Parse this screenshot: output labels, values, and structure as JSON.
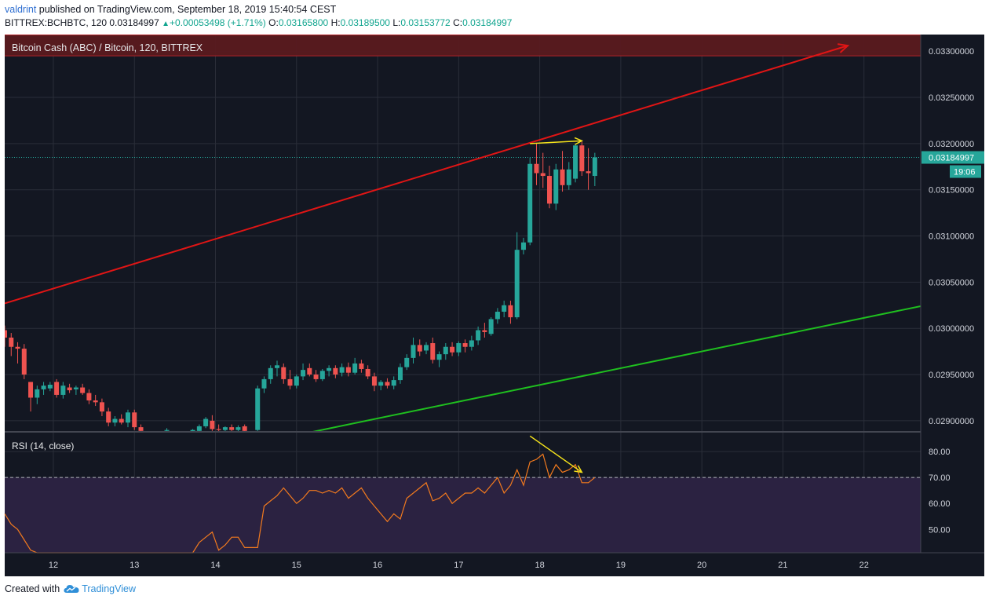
{
  "header": {
    "author": "valdrint",
    "published_text": "published on TradingView.com, September 18, 2019 15:40:54 CEST",
    "symbol": "BITTREX:BCHBTC, 120",
    "last": "0.03184997",
    "change": "+0.00053498 (+1.71%)",
    "o_label": "O:",
    "o": "0.03165800",
    "h_label": "H:",
    "h": "0.03189500",
    "l_label": "L:",
    "l": "0.03153772",
    "c_label": "C:",
    "c": "0.03184997"
  },
  "footer": {
    "created_with": "Created with",
    "brand": "TradingView"
  },
  "colors": {
    "background": "#131722",
    "grid": "#2a2e39",
    "up": "#26a69a",
    "down": "#ef5350",
    "red_line": "#e01515",
    "green_line": "#1fbf1f",
    "yellow": "#f5e31b",
    "rsi_line": "#f27a1e",
    "rsi_band": "#2b2241",
    "resistance_zone": "#5a1a1f"
  },
  "chart_data": {
    "type": "candlestick",
    "title": "Bitcoin Cash (ABC) / Bitcoin, 120, BITTREX",
    "x_ticks": [
      "12",
      "13",
      "14",
      "15",
      "16",
      "17",
      "18",
      "19",
      "20",
      "21",
      "22"
    ],
    "x_range_days": [
      11.4,
      22.7
    ],
    "y_ticks": [
      "0.03300000",
      "0.03250000",
      "0.03200000",
      "0.03150000",
      "0.03100000",
      "0.03050000",
      "0.03000000",
      "0.02950000",
      "0.02900000"
    ],
    "y_range": [
      0.02888,
      0.03318
    ],
    "last_price_label": "0.03184997",
    "countdown_label": "19:06",
    "resistance_zone": [
      0.03295,
      0.03318
    ],
    "candles": [
      {
        "d": 11.4,
        "o": 0.02998,
        "h": 0.03003,
        "l": 0.0298,
        "c": 0.0299
      },
      {
        "d": 11.48,
        "o": 0.0299,
        "h": 0.02995,
        "l": 0.0297,
        "c": 0.0298
      },
      {
        "d": 11.56,
        "o": 0.0298,
        "h": 0.02985,
        "l": 0.02962,
        "c": 0.02978
      },
      {
        "d": 11.64,
        "o": 0.02978,
        "h": 0.02983,
        "l": 0.02945,
        "c": 0.0295
      },
      {
        "d": 11.72,
        "o": 0.02942,
        "h": 0.02942,
        "l": 0.0291,
        "c": 0.02925
      },
      {
        "d": 11.8,
        "o": 0.02925,
        "h": 0.02938,
        "l": 0.02918,
        "c": 0.02934
      },
      {
        "d": 11.88,
        "o": 0.02934,
        "h": 0.02942,
        "l": 0.02928,
        "c": 0.02938
      },
      {
        "d": 11.96,
        "o": 0.02935,
        "h": 0.02942,
        "l": 0.02932,
        "c": 0.02939
      },
      {
        "d": 12.04,
        "o": 0.02942,
        "h": 0.02945,
        "l": 0.02925,
        "c": 0.02928
      },
      {
        "d": 12.12,
        "o": 0.02928,
        "h": 0.02942,
        "l": 0.02924,
        "c": 0.02938
      },
      {
        "d": 12.2,
        "o": 0.02936,
        "h": 0.0294,
        "l": 0.0293,
        "c": 0.02933
      },
      {
        "d": 12.28,
        "o": 0.02934,
        "h": 0.02938,
        "l": 0.02928,
        "c": 0.02936
      },
      {
        "d": 12.36,
        "o": 0.02936,
        "h": 0.0294,
        "l": 0.02928,
        "c": 0.0293
      },
      {
        "d": 12.44,
        "o": 0.0293,
        "h": 0.02934,
        "l": 0.02918,
        "c": 0.02922
      },
      {
        "d": 12.52,
        "o": 0.02922,
        "h": 0.02928,
        "l": 0.02916,
        "c": 0.0292
      },
      {
        "d": 12.6,
        "o": 0.0292,
        "h": 0.02924,
        "l": 0.02905,
        "c": 0.0291
      },
      {
        "d": 12.68,
        "o": 0.0291,
        "h": 0.02914,
        "l": 0.02894,
        "c": 0.02898
      },
      {
        "d": 12.76,
        "o": 0.02898,
        "h": 0.02905,
        "l": 0.02894,
        "c": 0.02902
      },
      {
        "d": 12.84,
        "o": 0.02902,
        "h": 0.02907,
        "l": 0.02896,
        "c": 0.02898
      },
      {
        "d": 12.92,
        "o": 0.02898,
        "h": 0.02912,
        "l": 0.02893,
        "c": 0.02909
      },
      {
        "d": 13.0,
        "o": 0.02909,
        "h": 0.02912,
        "l": 0.0289,
        "c": 0.02893
      },
      {
        "d": 13.08,
        "o": 0.02893,
        "h": 0.02896,
        "l": 0.02886,
        "c": 0.02889
      },
      {
        "d": 13.4,
        "o": 0.02889,
        "h": 0.02892,
        "l": 0.02886,
        "c": 0.0289
      },
      {
        "d": 13.72,
        "o": 0.02888,
        "h": 0.02891,
        "l": 0.02886,
        "c": 0.0289
      },
      {
        "d": 13.8,
        "o": 0.02889,
        "h": 0.02896,
        "l": 0.02887,
        "c": 0.02894
      },
      {
        "d": 13.88,
        "o": 0.02894,
        "h": 0.02904,
        "l": 0.02892,
        "c": 0.02902
      },
      {
        "d": 13.96,
        "o": 0.029,
        "h": 0.02906,
        "l": 0.02889,
        "c": 0.02891
      },
      {
        "d": 14.04,
        "o": 0.02891,
        "h": 0.02896,
        "l": 0.02886,
        "c": 0.0289
      },
      {
        "d": 14.12,
        "o": 0.0289,
        "h": 0.02894,
        "l": 0.02886,
        "c": 0.02893
      },
      {
        "d": 14.2,
        "o": 0.02893,
        "h": 0.02896,
        "l": 0.02888,
        "c": 0.0289
      },
      {
        "d": 14.28,
        "o": 0.0289,
        "h": 0.02895,
        "l": 0.02887,
        "c": 0.02893
      },
      {
        "d": 14.36,
        "o": 0.02894,
        "h": 0.02896,
        "l": 0.02886,
        "c": 0.02889
      },
      {
        "d": 14.52,
        "o": 0.0289,
        "h": 0.02938,
        "l": 0.02889,
        "c": 0.02935
      },
      {
        "d": 14.6,
        "o": 0.02935,
        "h": 0.02948,
        "l": 0.0293,
        "c": 0.02945
      },
      {
        "d": 14.68,
        "o": 0.02945,
        "h": 0.0296,
        "l": 0.0294,
        "c": 0.02957
      },
      {
        "d": 14.76,
        "o": 0.02957,
        "h": 0.02965,
        "l": 0.02948,
        "c": 0.0296
      },
      {
        "d": 14.84,
        "o": 0.02958,
        "h": 0.02962,
        "l": 0.0294,
        "c": 0.02945
      },
      {
        "d": 14.92,
        "o": 0.02945,
        "h": 0.02955,
        "l": 0.02934,
        "c": 0.02938
      },
      {
        "d": 15.0,
        "o": 0.02938,
        "h": 0.0295,
        "l": 0.02935,
        "c": 0.02948
      },
      {
        "d": 15.08,
        "o": 0.02948,
        "h": 0.02962,
        "l": 0.02944,
        "c": 0.02955
      },
      {
        "d": 15.16,
        "o": 0.02957,
        "h": 0.02962,
        "l": 0.02948,
        "c": 0.0295
      },
      {
        "d": 15.24,
        "o": 0.0295,
        "h": 0.02955,
        "l": 0.02942,
        "c": 0.02945
      },
      {
        "d": 15.32,
        "o": 0.02945,
        "h": 0.02956,
        "l": 0.02943,
        "c": 0.02954
      },
      {
        "d": 15.4,
        "o": 0.02954,
        "h": 0.0296,
        "l": 0.02948,
        "c": 0.02957
      },
      {
        "d": 15.48,
        "o": 0.02957,
        "h": 0.0296,
        "l": 0.02946,
        "c": 0.0295
      },
      {
        "d": 15.56,
        "o": 0.02952,
        "h": 0.02962,
        "l": 0.02948,
        "c": 0.02958
      },
      {
        "d": 15.64,
        "o": 0.02958,
        "h": 0.02963,
        "l": 0.02948,
        "c": 0.02952
      },
      {
        "d": 15.72,
        "o": 0.02952,
        "h": 0.02968,
        "l": 0.0295,
        "c": 0.02962
      },
      {
        "d": 15.8,
        "o": 0.02962,
        "h": 0.02966,
        "l": 0.02952,
        "c": 0.02956
      },
      {
        "d": 15.88,
        "o": 0.02956,
        "h": 0.0296,
        "l": 0.02945,
        "c": 0.02948
      },
      {
        "d": 15.96,
        "o": 0.02948,
        "h": 0.02952,
        "l": 0.02932,
        "c": 0.02938
      },
      {
        "d": 16.04,
        "o": 0.02938,
        "h": 0.02944,
        "l": 0.02933,
        "c": 0.02942
      },
      {
        "d": 16.12,
        "o": 0.02942,
        "h": 0.02946,
        "l": 0.02935,
        "c": 0.02938
      },
      {
        "d": 16.2,
        "o": 0.02938,
        "h": 0.02948,
        "l": 0.02934,
        "c": 0.02944
      },
      {
        "d": 16.28,
        "o": 0.02944,
        "h": 0.02962,
        "l": 0.0294,
        "c": 0.02958
      },
      {
        "d": 16.36,
        "o": 0.02958,
        "h": 0.02972,
        "l": 0.02955,
        "c": 0.02968
      },
      {
        "d": 16.44,
        "o": 0.02968,
        "h": 0.0299,
        "l": 0.02962,
        "c": 0.02982
      },
      {
        "d": 16.52,
        "o": 0.02982,
        "h": 0.02988,
        "l": 0.0297,
        "c": 0.02975
      },
      {
        "d": 16.6,
        "o": 0.02976,
        "h": 0.02985,
        "l": 0.02972,
        "c": 0.02982
      },
      {
        "d": 16.68,
        "o": 0.02984,
        "h": 0.0299,
        "l": 0.02962,
        "c": 0.02966
      },
      {
        "d": 16.76,
        "o": 0.02966,
        "h": 0.02975,
        "l": 0.02958,
        "c": 0.02972
      },
      {
        "d": 16.84,
        "o": 0.02972,
        "h": 0.02984,
        "l": 0.02966,
        "c": 0.0298
      },
      {
        "d": 16.92,
        "o": 0.0298,
        "h": 0.02985,
        "l": 0.0297,
        "c": 0.02974
      },
      {
        "d": 17.0,
        "o": 0.02974,
        "h": 0.02986,
        "l": 0.0297,
        "c": 0.02984
      },
      {
        "d": 17.08,
        "o": 0.02984,
        "h": 0.02988,
        "l": 0.02974,
        "c": 0.0298
      },
      {
        "d": 17.16,
        "o": 0.0298,
        "h": 0.02992,
        "l": 0.02976,
        "c": 0.02987
      },
      {
        "d": 17.24,
        "o": 0.02987,
        "h": 0.03002,
        "l": 0.02982,
        "c": 0.02998
      },
      {
        "d": 17.32,
        "o": 0.02998,
        "h": 0.03006,
        "l": 0.0299,
        "c": 0.02996
      },
      {
        "d": 17.4,
        "o": 0.02994,
        "h": 0.03012,
        "l": 0.02992,
        "c": 0.0301
      },
      {
        "d": 17.48,
        "o": 0.0301,
        "h": 0.03022,
        "l": 0.03005,
        "c": 0.03018
      },
      {
        "d": 17.56,
        "o": 0.03018,
        "h": 0.0303,
        "l": 0.03012,
        "c": 0.03025
      },
      {
        "d": 17.64,
        "o": 0.03025,
        "h": 0.0303,
        "l": 0.03005,
        "c": 0.03012
      },
      {
        "d": 17.72,
        "o": 0.03012,
        "h": 0.03104,
        "l": 0.0301,
        "c": 0.03085
      },
      {
        "d": 17.8,
        "o": 0.03085,
        "h": 0.03098,
        "l": 0.0308,
        "c": 0.03093
      },
      {
        "d": 17.88,
        "o": 0.03093,
        "h": 0.03185,
        "l": 0.0309,
        "c": 0.03178
      },
      {
        "d": 17.96,
        "o": 0.03178,
        "h": 0.032,
        "l": 0.03155,
        "c": 0.03168
      },
      {
        "d": 18.04,
        "o": 0.03168,
        "h": 0.0319,
        "l": 0.03152,
        "c": 0.03165
      },
      {
        "d": 18.12,
        "o": 0.03165,
        "h": 0.03176,
        "l": 0.0313,
        "c": 0.03135
      },
      {
        "d": 18.2,
        "o": 0.03135,
        "h": 0.03178,
        "l": 0.03128,
        "c": 0.03172
      },
      {
        "d": 18.28,
        "o": 0.03172,
        "h": 0.03192,
        "l": 0.03148,
        "c": 0.03155
      },
      {
        "d": 18.36,
        "o": 0.03155,
        "h": 0.0318,
        "l": 0.0315,
        "c": 0.03172
      },
      {
        "d": 18.44,
        "o": 0.03162,
        "h": 0.032,
        "l": 0.03158,
        "c": 0.03198
      },
      {
        "d": 18.52,
        "o": 0.03198,
        "h": 0.03202,
        "l": 0.03165,
        "c": 0.0317
      },
      {
        "d": 18.6,
        "o": 0.0317,
        "h": 0.03195,
        "l": 0.0315,
        "c": 0.03168
      },
      {
        "d": 18.68,
        "o": 0.03165,
        "h": 0.0319,
        "l": 0.03154,
        "c": 0.03185
      }
    ],
    "red_trendline": [
      {
        "d": 11.4,
        "y": 0.03027
      },
      {
        "d": 21.8,
        "y": 0.03306
      }
    ],
    "green_trendline": [
      {
        "d": 15.2,
        "y": 0.02888
      },
      {
        "d": 22.7,
        "y": 0.03024
      }
    ],
    "price_yellow_arrow": [
      {
        "d": 17.88,
        "y": 0.032
      },
      {
        "d": 18.52,
        "y": 0.03203
      }
    ],
    "rsi": {
      "title": "RSI (14, close)",
      "y_ticks": [
        "80.00",
        "70.00",
        "60.00",
        "50.00"
      ],
      "y_range": [
        41,
        87
      ],
      "band": [
        30,
        70
      ],
      "dashed_level": 70,
      "values": [
        [
          11.4,
          56
        ],
        [
          11.48,
          52
        ],
        [
          11.56,
          50
        ],
        [
          11.64,
          46
        ],
        [
          11.72,
          42
        ],
        [
          11.8,
          40
        ],
        [
          11.88,
          39
        ],
        [
          11.96,
          41
        ],
        [
          12.04,
          41
        ],
        [
          12.12,
          40
        ],
        [
          12.2,
          39
        ],
        [
          12.28,
          41
        ],
        [
          12.36,
          40
        ],
        [
          12.44,
          39
        ],
        [
          12.52,
          40
        ],
        [
          12.6,
          38
        ],
        [
          12.68,
          37
        ],
        [
          12.76,
          38
        ],
        [
          12.84,
          37
        ],
        [
          12.92,
          36
        ],
        [
          13.0,
          35
        ],
        [
          13.08,
          34
        ],
        [
          13.72,
          36
        ],
        [
          13.8,
          45
        ],
        [
          13.88,
          47
        ],
        [
          13.96,
          49
        ],
        [
          14.04,
          42
        ],
        [
          14.12,
          44
        ],
        [
          14.2,
          47
        ],
        [
          14.28,
          47
        ],
        [
          14.36,
          43
        ],
        [
          14.44,
          43
        ],
        [
          14.52,
          43
        ],
        [
          14.6,
          59
        ],
        [
          14.68,
          61
        ],
        [
          14.76,
          63
        ],
        [
          14.84,
          66
        ],
        [
          14.92,
          63
        ],
        [
          15.0,
          60
        ],
        [
          15.08,
          62
        ],
        [
          15.16,
          65
        ],
        [
          15.24,
          65
        ],
        [
          15.32,
          64
        ],
        [
          15.4,
          65
        ],
        [
          15.48,
          64
        ],
        [
          15.56,
          66
        ],
        [
          15.64,
          62
        ],
        [
          15.72,
          64
        ],
        [
          15.8,
          66
        ],
        [
          15.88,
          62
        ],
        [
          15.96,
          59
        ],
        [
          16.04,
          56
        ],
        [
          16.12,
          53
        ],
        [
          16.2,
          56
        ],
        [
          16.28,
          54
        ],
        [
          16.36,
          62
        ],
        [
          16.44,
          64
        ],
        [
          16.52,
          66
        ],
        [
          16.6,
          68
        ],
        [
          16.68,
          61
        ],
        [
          16.76,
          62
        ],
        [
          16.84,
          64
        ],
        [
          16.92,
          60
        ],
        [
          17.0,
          62
        ],
        [
          17.08,
          64
        ],
        [
          17.16,
          64
        ],
        [
          17.24,
          66
        ],
        [
          17.32,
          64
        ],
        [
          17.4,
          67
        ],
        [
          17.48,
          70
        ],
        [
          17.56,
          64
        ],
        [
          17.64,
          67
        ],
        [
          17.72,
          73
        ],
        [
          17.8,
          67
        ],
        [
          17.88,
          76
        ],
        [
          17.96,
          77
        ],
        [
          18.04,
          79
        ],
        [
          18.12,
          70
        ],
        [
          18.2,
          75
        ],
        [
          18.28,
          72
        ],
        [
          18.36,
          73
        ],
        [
          18.44,
          75
        ],
        [
          18.52,
          68
        ],
        [
          18.6,
          68
        ],
        [
          18.68,
          70
        ]
      ],
      "yellow_arrow": [
        {
          "d": 17.88,
          "y": 86
        },
        {
          "d": 18.52,
          "y": 72
        }
      ]
    }
  }
}
